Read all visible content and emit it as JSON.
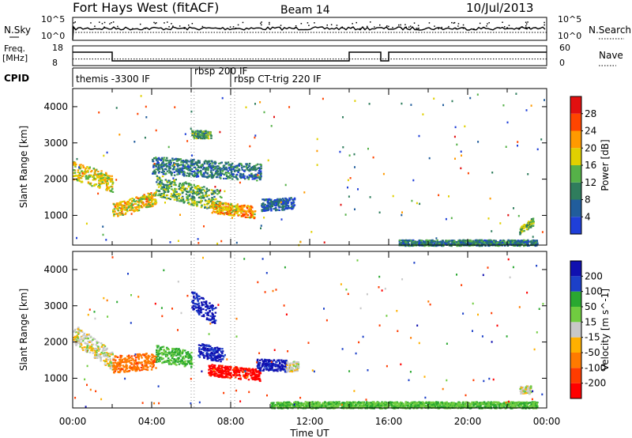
{
  "header": {
    "station": "Fort Hays West (fitACF)",
    "beam": "Beam 14",
    "date": "10/Jul/2013"
  },
  "chart_data": {
    "type": "heatmap",
    "xlabel": "Time UT",
    "x_ticks": [
      "00:00",
      "04:00",
      "08:00",
      "12:00",
      "16:00",
      "20:00",
      "00:00"
    ],
    "x_range_hours": [
      0,
      24
    ],
    "y_range_km": [
      180,
      4500
    ],
    "y_ticks": [
      1000,
      2000,
      3000,
      4000
    ],
    "status_panels": {
      "nsky": {
        "left_label": "N.Sky",
        "right_label": "N.Search",
        "left_ticks": [
          "10^5",
          "10^0"
        ],
        "right_ticks": [
          "10^5",
          "10^0"
        ]
      },
      "freq": {
        "left_label": "Freq.",
        "left_unit": "[MHz]",
        "right_label": "Nave",
        "left_ticks": [
          "18",
          "8"
        ],
        "right_ticks": [
          "60",
          "0"
        ],
        "freq_steps": [
          {
            "start": 0.0,
            "end": 2.0,
            "mhz": 14.8
          },
          {
            "start": 2.0,
            "end": 14.0,
            "mhz": 10.4
          },
          {
            "start": 14.0,
            "end": 15.6,
            "mhz": 14.8
          },
          {
            "start": 15.6,
            "end": 16.0,
            "mhz": 10.4
          },
          {
            "start": 16.0,
            "end": 24.0,
            "mhz": 14.8
          }
        ],
        "nave_level": 20
      },
      "cpid": {
        "label": "CPID",
        "segments": [
          {
            "start": 0.0,
            "name": "themis -3300 IF"
          },
          {
            "start": 6.0,
            "name": "rbsp 200 IF"
          },
          {
            "start": 8.0,
            "name": "rbsp CT-trig 220 IF"
          }
        ]
      }
    },
    "panels": [
      {
        "name": "power",
        "ylabel": "Slant Range [km]",
        "colorbar_label": "Power [dB]",
        "colorbar_ticks": [
          4,
          8,
          12,
          16,
          20,
          24,
          28
        ],
        "colorbar_range": [
          0,
          32
        ],
        "colors": [
          "#1f3fd8",
          "#215d9c",
          "#2f7d5d",
          "#55b148",
          "#e0d000",
          "#ff9a00",
          "#ff4500",
          "#e21010"
        ],
        "regions": [
          {
            "t0": 0.0,
            "t1": 2.0,
            "r0": 2250,
            "r1": 1900,
            "w": 280,
            "v": 18
          },
          {
            "t0": 2.0,
            "t1": 4.2,
            "r0": 1150,
            "r1": 1500,
            "w": 220,
            "v": 19
          },
          {
            "t0": 4.2,
            "t1": 7.5,
            "r0": 1850,
            "r1": 1400,
            "w": 330,
            "v": 13
          },
          {
            "t0": 7.0,
            "t1": 9.2,
            "r0": 1250,
            "r1": 1100,
            "w": 180,
            "v": 21
          },
          {
            "t0": 4.0,
            "t1": 9.5,
            "r0": 2400,
            "r1": 2200,
            "w": 260,
            "v": 8
          },
          {
            "t0": 6.0,
            "t1": 7.0,
            "r0": 3250,
            "r1": 3250,
            "w": 120,
            "v": 12
          },
          {
            "t0": 9.5,
            "t1": 11.2,
            "r0": 1300,
            "r1": 1350,
            "w": 180,
            "v": 6
          },
          {
            "t0": 16.5,
            "t1": 23.5,
            "r0": 260,
            "r1": 260,
            "w": 90,
            "v": 9
          },
          {
            "t0": 22.6,
            "t1": 23.3,
            "r0": 600,
            "r1": 850,
            "w": 120,
            "v": 14
          }
        ]
      },
      {
        "name": "velocity",
        "ylabel": "Slant Range [km]",
        "colorbar_label": "Velocity [m s^-1]",
        "colorbar_ticks": [
          -200,
          -100,
          -50,
          -15,
          15,
          50,
          100,
          200
        ],
        "colorbar_range": [
          -250,
          250
        ],
        "colors": [
          "#ff0000",
          "#ff3c00",
          "#ff7a00",
          "#ffb000",
          "#c8c8c8",
          "#70cc40",
          "#2aa830",
          "#1c40c8",
          "#1010b0"
        ],
        "regions": [
          {
            "t0": 0.0,
            "t1": 2.0,
            "r0": 2250,
            "r1": 1500,
            "w": 300,
            "v": 0
          },
          {
            "t0": 2.0,
            "t1": 4.2,
            "r0": 1400,
            "r1": 1500,
            "w": 260,
            "v": -80
          },
          {
            "t0": 4.2,
            "t1": 6.0,
            "r0": 1700,
            "r1": 1550,
            "w": 260,
            "v": 60
          },
          {
            "t0": 6.3,
            "t1": 7.6,
            "r0": 1800,
            "r1": 1650,
            "w": 220,
            "v": 210
          },
          {
            "t0": 6.8,
            "t1": 9.5,
            "r0": 1250,
            "r1": 1100,
            "w": 180,
            "v": -220
          },
          {
            "t0": 6.0,
            "t1": 7.2,
            "r0": 3200,
            "r1": 2700,
            "w": 300,
            "v": 210
          },
          {
            "t0": 9.3,
            "t1": 10.8,
            "r0": 1400,
            "r1": 1350,
            "w": 180,
            "v": 210
          },
          {
            "t0": 10.8,
            "t1": 11.4,
            "r0": 1350,
            "r1": 1350,
            "w": 160,
            "v": 0
          },
          {
            "t0": 10.0,
            "t1": 23.5,
            "r0": 280,
            "r1": 280,
            "w": 100,
            "v": 45
          },
          {
            "t0": 22.6,
            "t1": 23.2,
            "r0": 700,
            "r1": 700,
            "w": 120,
            "v": 0
          }
        ]
      }
    ]
  }
}
